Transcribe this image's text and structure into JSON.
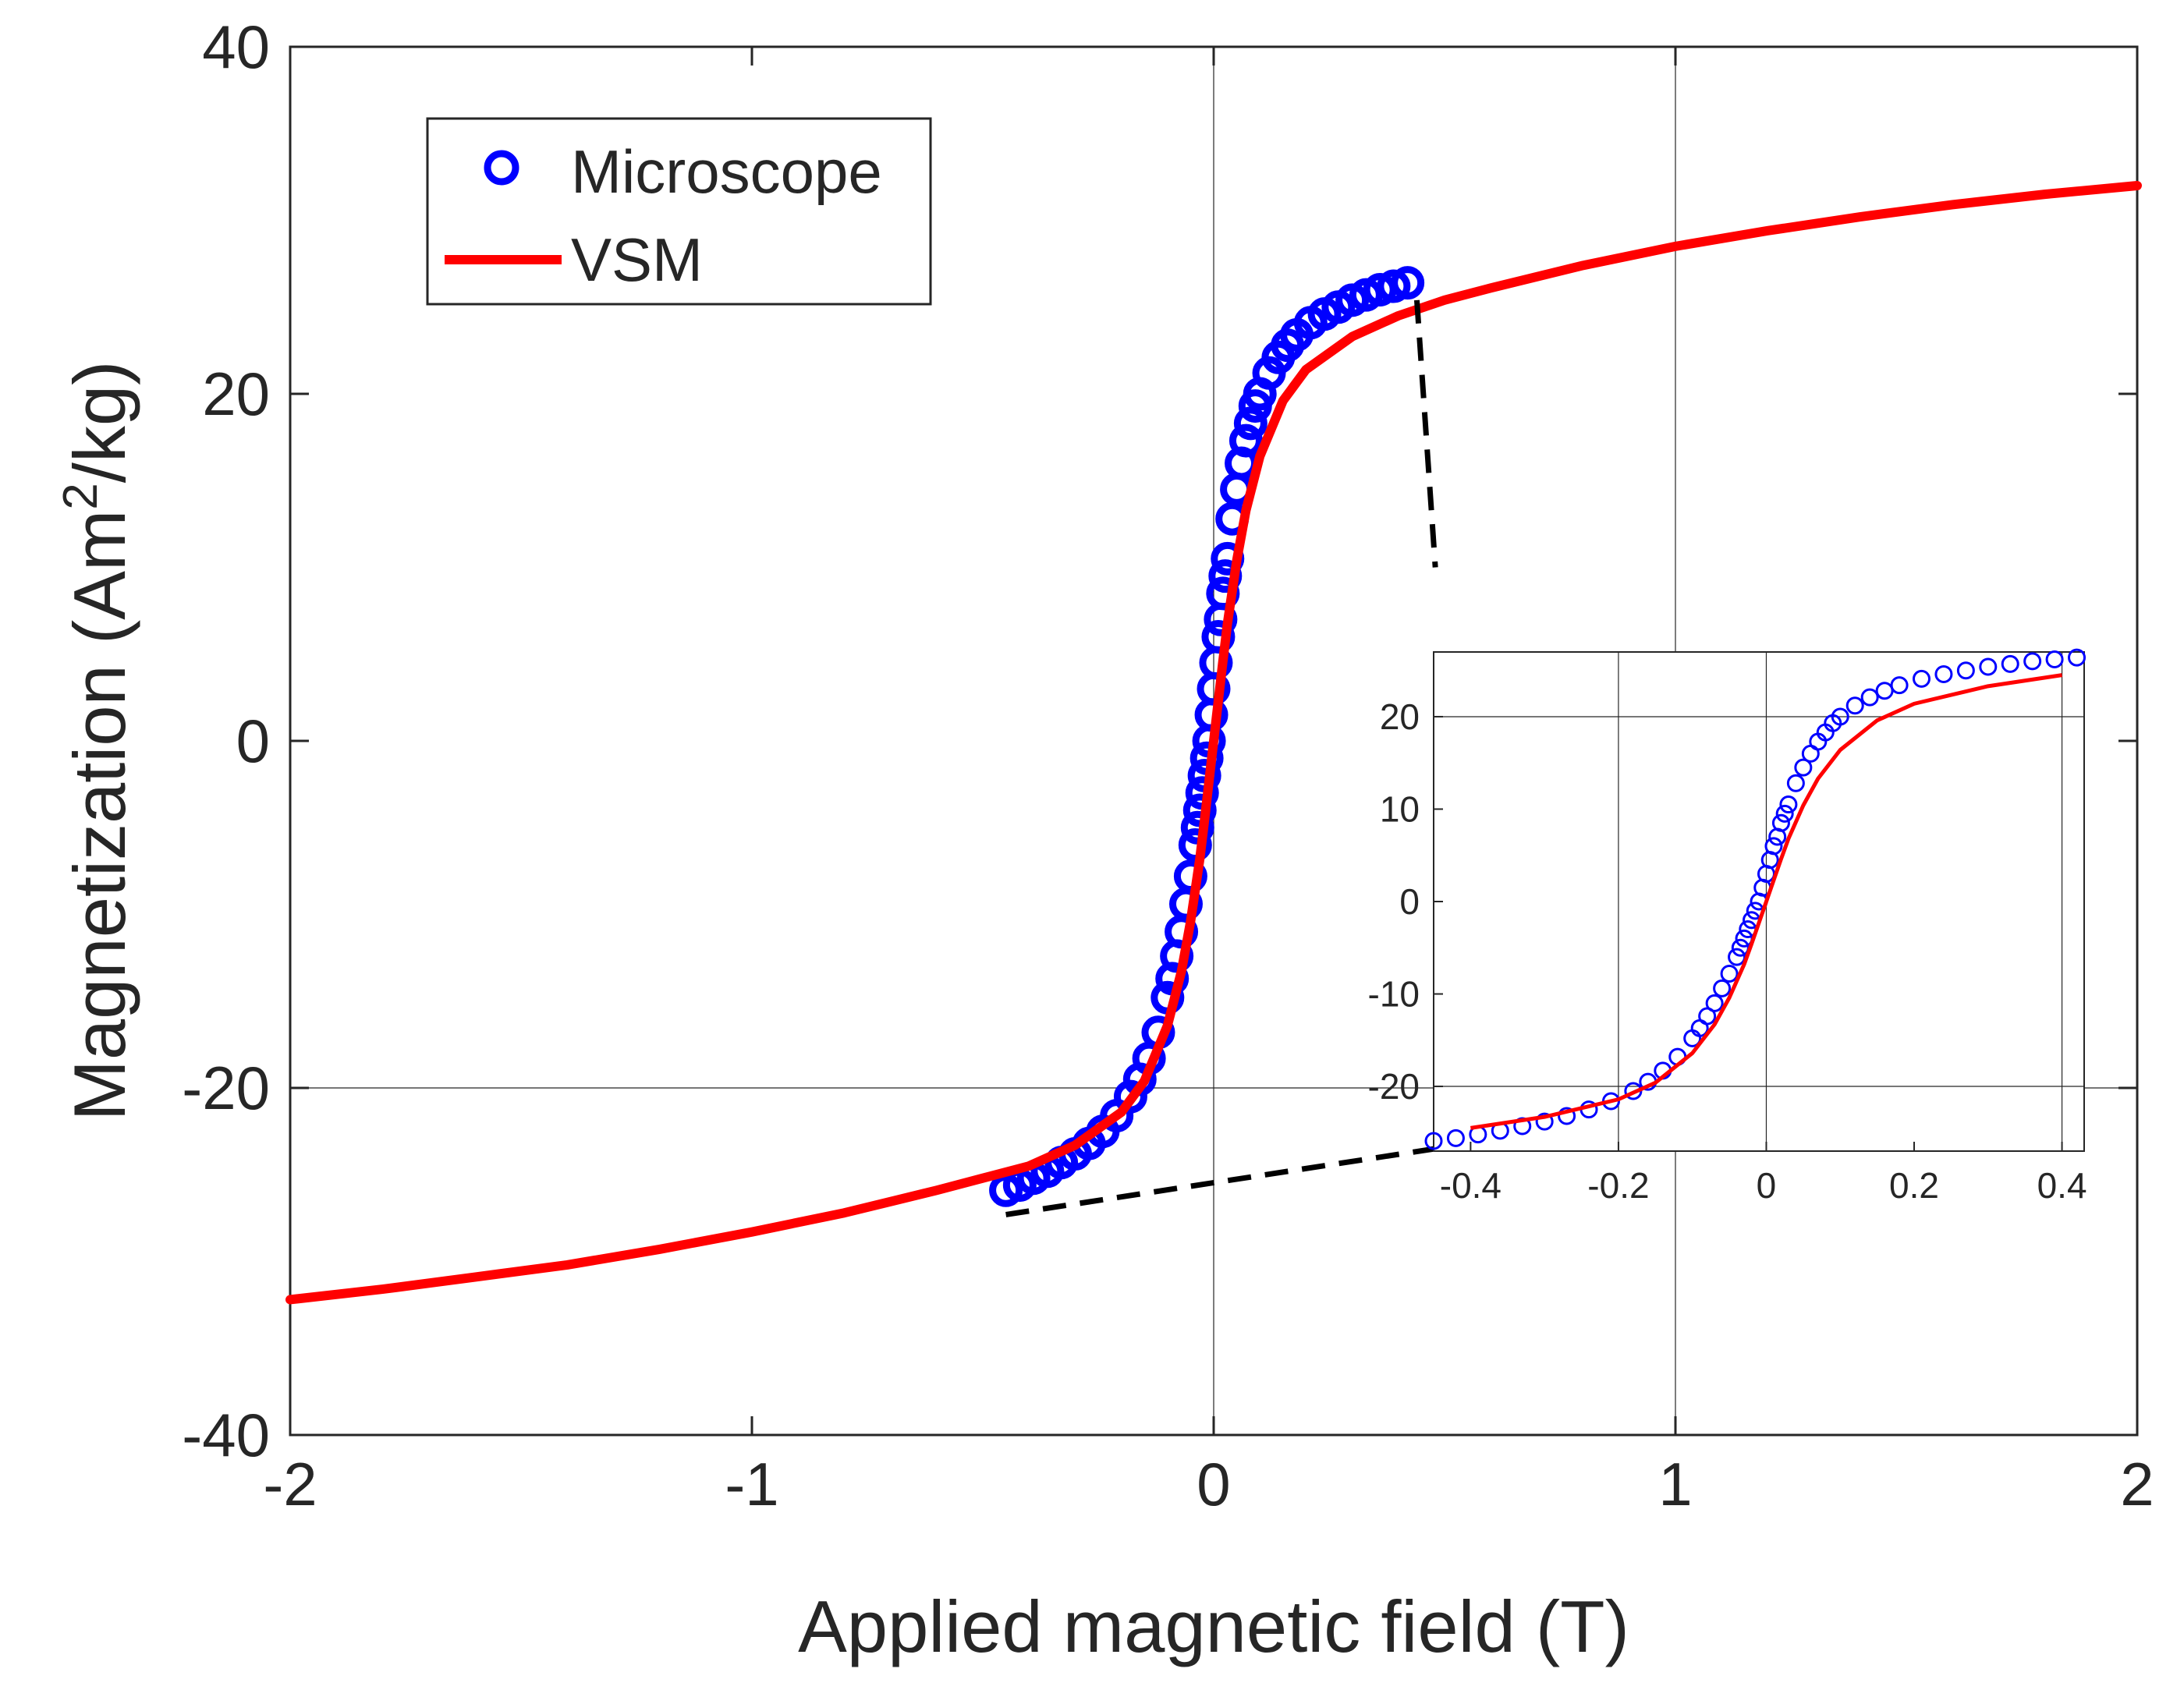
{
  "chart_data": {
    "type": "line",
    "title": "",
    "xlabel": "Applied magnetic field (T)",
    "ylabel_main": "Magnetization (Am",
    "ylabel_sup": "2",
    "ylabel_end": "/kg)",
    "xlim": [
      -2,
      2
    ],
    "ylim": [
      -40,
      40
    ],
    "xticks": [
      "-2",
      "-1",
      "0",
      "1",
      "2"
    ],
    "yticks": [
      "-40",
      "-20",
      "0",
      "20",
      "40"
    ],
    "grid_x": [
      0,
      1
    ],
    "grid_y": [
      -20
    ],
    "legend": {
      "position": "top-left",
      "entries": [
        "Microscope",
        "VSM"
      ]
    },
    "series": [
      {
        "name": "VSM",
        "style": "line",
        "color": "#ff0000",
        "x": [
          -2.0,
          -1.8,
          -1.6,
          -1.4,
          -1.2,
          -1.0,
          -0.8,
          -0.6,
          -0.5,
          -0.4,
          -0.3,
          -0.2,
          -0.15,
          -0.1,
          -0.07,
          -0.05,
          -0.03,
          -0.02,
          -0.01,
          0.0,
          0.01,
          0.02,
          0.03,
          0.05,
          0.07,
          0.1,
          0.15,
          0.2,
          0.3,
          0.4,
          0.5,
          0.6,
          0.8,
          1.0,
          1.2,
          1.4,
          1.6,
          1.8,
          2.0
        ],
        "y": [
          -32.2,
          -31.6,
          -30.9,
          -30.2,
          -29.3,
          -28.3,
          -27.2,
          -25.9,
          -25.2,
          -24.5,
          -23.3,
          -21.4,
          -19.6,
          -16.4,
          -13.3,
          -10.4,
          -6.8,
          -4.6,
          -2.3,
          0.0,
          2.3,
          4.6,
          6.8,
          10.4,
          13.3,
          16.4,
          19.6,
          21.4,
          23.3,
          24.5,
          25.4,
          26.1,
          27.4,
          28.5,
          29.4,
          30.2,
          30.9,
          31.5,
          32.0
        ]
      },
      {
        "name": "Microscope",
        "style": "markers",
        "color": "#0000ff",
        "x": [
          -0.45,
          -0.42,
          -0.39,
          -0.36,
          -0.33,
          -0.3,
          -0.27,
          -0.24,
          -0.21,
          -0.18,
          -0.16,
          -0.14,
          -0.12,
          -0.1,
          -0.09,
          -0.08,
          -0.07,
          -0.06,
          -0.05,
          -0.04,
          -0.035,
          -0.03,
          -0.025,
          -0.02,
          -0.015,
          -0.01,
          -0.005,
          0.0,
          0.005,
          0.01,
          0.015,
          0.02,
          0.025,
          0.03,
          0.04,
          0.05,
          0.06,
          0.07,
          0.08,
          0.09,
          0.1,
          0.12,
          0.14,
          0.16,
          0.18,
          0.21,
          0.24,
          0.27,
          0.3,
          0.33,
          0.36,
          0.39,
          0.42
        ],
        "y": [
          -25.9,
          -25.6,
          -25.2,
          -24.8,
          -24.3,
          -23.8,
          -23.2,
          -22.5,
          -21.6,
          -20.5,
          -19.5,
          -18.3,
          -16.8,
          -14.8,
          -13.7,
          -12.4,
          -11.0,
          -9.4,
          -7.8,
          -6.0,
          -5.0,
          -4.0,
          -3.0,
          -2.0,
          -1.0,
          0.0,
          1.5,
          3.0,
          4.5,
          6.0,
          7.0,
          8.5,
          9.5,
          10.5,
          12.8,
          14.5,
          16.0,
          17.3,
          18.3,
          19.3,
          20.0,
          21.2,
          22.1,
          22.8,
          23.4,
          24.1,
          24.6,
          25.0,
          25.4,
          25.7,
          26.0,
          26.2,
          26.4
        ]
      }
    ],
    "inset": {
      "xlim": [
        -0.45,
        0.43
      ],
      "ylim": [
        -27,
        27
      ],
      "xticks": [
        "-0.4",
        "-0.2",
        "0",
        "0.2",
        "0.4"
      ],
      "yticks": [
        "-20",
        "-10",
        "0",
        "10",
        "20"
      ],
      "grid_x": [
        -0.2,
        0,
        0.4
      ],
      "grid_y": [
        20,
        -20
      ]
    },
    "zoom_connectors": [
      {
        "from": [
          0.44,
          25.4
        ],
        "to": [
          0.48,
          10.0
        ]
      },
      {
        "from": [
          -0.45,
          -27.3
        ],
        "to": [
          0.48,
          -23.5
        ]
      }
    ]
  },
  "colors": {
    "vsm": "#ff0000",
    "microscope": "#0000ff",
    "axes": "#262626"
  }
}
